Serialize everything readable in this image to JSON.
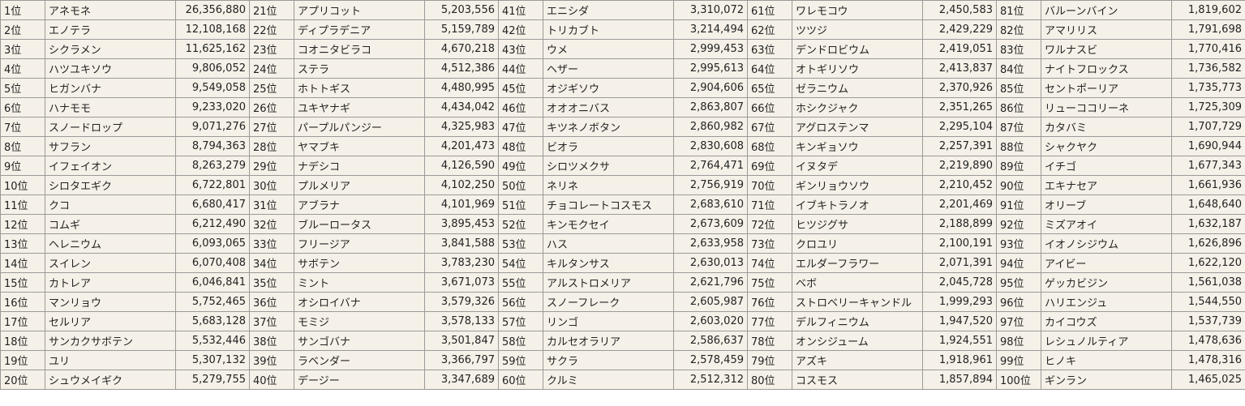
{
  "rankings": [
    {
      "rank": "1位",
      "name": "アネモネ",
      "value": "26,356,880"
    },
    {
      "rank": "2位",
      "name": "エノテラ",
      "value": "12,108,168"
    },
    {
      "rank": "3位",
      "name": "シクラメン",
      "value": "11,625,162"
    },
    {
      "rank": "4位",
      "name": "ハツユキソウ",
      "value": "9,806,052"
    },
    {
      "rank": "5位",
      "name": "ヒガンバナ",
      "value": "9,549,058"
    },
    {
      "rank": "6位",
      "name": "ハナモモ",
      "value": "9,233,020"
    },
    {
      "rank": "7位",
      "name": "スノードロップ",
      "value": "9,071,276"
    },
    {
      "rank": "8位",
      "name": "サフラン",
      "value": "8,794,363"
    },
    {
      "rank": "9位",
      "name": "イフェイオン",
      "value": "8,263,279"
    },
    {
      "rank": "10位",
      "name": "シロタエギク",
      "value": "6,722,801"
    },
    {
      "rank": "11位",
      "name": "クコ",
      "value": "6,680,417"
    },
    {
      "rank": "12位",
      "name": "コムギ",
      "value": "6,212,490"
    },
    {
      "rank": "13位",
      "name": "ヘレニウム",
      "value": "6,093,065"
    },
    {
      "rank": "14位",
      "name": "スイレン",
      "value": "6,070,408"
    },
    {
      "rank": "15位",
      "name": "カトレア",
      "value": "6,046,841"
    },
    {
      "rank": "16位",
      "name": "マンリョウ",
      "value": "5,752,465"
    },
    {
      "rank": "17位",
      "name": "セルリア",
      "value": "5,683,128"
    },
    {
      "rank": "18位",
      "name": "サンカクサボテン",
      "value": "5,532,446"
    },
    {
      "rank": "19位",
      "name": "ユリ",
      "value": "5,307,132"
    },
    {
      "rank": "20位",
      "name": "シュウメイギク",
      "value": "5,279,755"
    },
    {
      "rank": "21位",
      "name": "アプリコット",
      "value": "5,203,556"
    },
    {
      "rank": "22位",
      "name": "ディプラデニア",
      "value": "5,159,789"
    },
    {
      "rank": "23位",
      "name": "コオニタビラコ",
      "value": "4,670,218"
    },
    {
      "rank": "24位",
      "name": "ステラ",
      "value": "4,512,386"
    },
    {
      "rank": "25位",
      "name": "ホトトギス",
      "value": "4,480,995"
    },
    {
      "rank": "26位",
      "name": "ユキヤナギ",
      "value": "4,434,042"
    },
    {
      "rank": "27位",
      "name": "パープルパンジー",
      "value": "4,325,983"
    },
    {
      "rank": "28位",
      "name": "ヤマブキ",
      "value": "4,201,473"
    },
    {
      "rank": "29位",
      "name": "ナデシコ",
      "value": "4,126,590"
    },
    {
      "rank": "30位",
      "name": "プルメリア",
      "value": "4,102,250"
    },
    {
      "rank": "31位",
      "name": "アブラナ",
      "value": "4,101,969"
    },
    {
      "rank": "32位",
      "name": "ブルーロータス",
      "value": "3,895,453"
    },
    {
      "rank": "33位",
      "name": "フリージア",
      "value": "3,841,588"
    },
    {
      "rank": "34位",
      "name": "サボテン",
      "value": "3,783,230"
    },
    {
      "rank": "35位",
      "name": "ミント",
      "value": "3,671,073"
    },
    {
      "rank": "36位",
      "name": "オシロイバナ",
      "value": "3,579,326"
    },
    {
      "rank": "37位",
      "name": "モミジ",
      "value": "3,578,133"
    },
    {
      "rank": "38位",
      "name": "サンゴバナ",
      "value": "3,501,847"
    },
    {
      "rank": "39位",
      "name": "ラベンダー",
      "value": "3,366,797"
    },
    {
      "rank": "40位",
      "name": "デージー",
      "value": "3,347,689"
    },
    {
      "rank": "41位",
      "name": "エニシダ",
      "value": "3,310,072"
    },
    {
      "rank": "42位",
      "name": "トリカブト",
      "value": "3,214,494"
    },
    {
      "rank": "43位",
      "name": "ウメ",
      "value": "2,999,453"
    },
    {
      "rank": "44位",
      "name": "ヘザー",
      "value": "2,995,613"
    },
    {
      "rank": "45位",
      "name": "オジギソウ",
      "value": "2,904,606"
    },
    {
      "rank": "46位",
      "name": "オオオニバス",
      "value": "2,863,807"
    },
    {
      "rank": "47位",
      "name": "キツネノボタン",
      "value": "2,860,982"
    },
    {
      "rank": "48位",
      "name": "ビオラ",
      "value": "2,830,608"
    },
    {
      "rank": "49位",
      "name": "シロツメクサ",
      "value": "2,764,471"
    },
    {
      "rank": "50位",
      "name": "ネリネ",
      "value": "2,756,919"
    },
    {
      "rank": "51位",
      "name": "チョコレートコスモス",
      "value": "2,683,610"
    },
    {
      "rank": "52位",
      "name": "キンモクセイ",
      "value": "2,673,609"
    },
    {
      "rank": "53位",
      "name": "ハス",
      "value": "2,633,958"
    },
    {
      "rank": "54位",
      "name": "キルタンサス",
      "value": "2,630,013"
    },
    {
      "rank": "55位",
      "name": "アルストロメリア",
      "value": "2,621,796"
    },
    {
      "rank": "56位",
      "name": "スノーフレーク",
      "value": "2,605,987"
    },
    {
      "rank": "57位",
      "name": "リンゴ",
      "value": "2,603,020"
    },
    {
      "rank": "58位",
      "name": "カルセオラリア",
      "value": "2,586,637"
    },
    {
      "rank": "59位",
      "name": "サクラ",
      "value": "2,578,459"
    },
    {
      "rank": "60位",
      "name": "クルミ",
      "value": "2,512,312"
    },
    {
      "rank": "61位",
      "name": "ワレモコウ",
      "value": "2,450,583"
    },
    {
      "rank": "62位",
      "name": "ツツジ",
      "value": "2,429,229"
    },
    {
      "rank": "63位",
      "name": "デンドロビウム",
      "value": "2,419,051"
    },
    {
      "rank": "64位",
      "name": "オトギリソウ",
      "value": "2,413,837"
    },
    {
      "rank": "65位",
      "name": "ゼラニウム",
      "value": "2,370,926"
    },
    {
      "rank": "66位",
      "name": "ホシクジャク",
      "value": "2,351,265"
    },
    {
      "rank": "67位",
      "name": "アグロステンマ",
      "value": "2,295,104"
    },
    {
      "rank": "68位",
      "name": "キンギョソウ",
      "value": "2,257,391"
    },
    {
      "rank": "69位",
      "name": "イヌタデ",
      "value": "2,219,890"
    },
    {
      "rank": "70位",
      "name": "ギンリョウソウ",
      "value": "2,210,452"
    },
    {
      "rank": "71位",
      "name": "イブキトラノオ",
      "value": "2,201,469"
    },
    {
      "rank": "72位",
      "name": "ヒツジグサ",
      "value": "2,188,899"
    },
    {
      "rank": "73位",
      "name": "クロユリ",
      "value": "2,100,191"
    },
    {
      "rank": "74位",
      "name": "エルダーフラワー",
      "value": "2,071,391"
    },
    {
      "rank": "75位",
      "name": "ベボ",
      "value": "2,045,728"
    },
    {
      "rank": "76位",
      "name": "ストロベリーキャンドル",
      "value": "1,999,293"
    },
    {
      "rank": "77位",
      "name": "デルフィニウム",
      "value": "1,947,520"
    },
    {
      "rank": "78位",
      "name": "オンシジューム",
      "value": "1,924,551"
    },
    {
      "rank": "79位",
      "name": "アズキ",
      "value": "1,918,961"
    },
    {
      "rank": "80位",
      "name": "コスモス",
      "value": "1,857,894"
    },
    {
      "rank": "81位",
      "name": "バルーンバイン",
      "value": "1,819,602"
    },
    {
      "rank": "82位",
      "name": "アマリリス",
      "value": "1,791,698"
    },
    {
      "rank": "83位",
      "name": "ワルナスビ",
      "value": "1,770,416"
    },
    {
      "rank": "84位",
      "name": "ナイトフロックス",
      "value": "1,736,582"
    },
    {
      "rank": "85位",
      "name": "セントポーリア",
      "value": "1,735,773"
    },
    {
      "rank": "86位",
      "name": "リューココリーネ",
      "value": "1,725,309"
    },
    {
      "rank": "87位",
      "name": "カタバミ",
      "value": "1,707,729"
    },
    {
      "rank": "88位",
      "name": "シャクヤク",
      "value": "1,690,944"
    },
    {
      "rank": "89位",
      "name": "イチゴ",
      "value": "1,677,343"
    },
    {
      "rank": "90位",
      "name": "エキナセア",
      "value": "1,661,936"
    },
    {
      "rank": "91位",
      "name": "オリーブ",
      "value": "1,648,640"
    },
    {
      "rank": "92位",
      "name": "ミズアオイ",
      "value": "1,632,187"
    },
    {
      "rank": "93位",
      "name": "イオノシジウム",
      "value": "1,626,896"
    },
    {
      "rank": "94位",
      "name": "アイビー",
      "value": "1,622,120"
    },
    {
      "rank": "95位",
      "name": "ゲッカビジン",
      "value": "1,561,038"
    },
    {
      "rank": "96位",
      "name": "ハリエンジュ",
      "value": "1,544,550"
    },
    {
      "rank": "97位",
      "name": "カイコウズ",
      "value": "1,537,739"
    },
    {
      "rank": "98位",
      "name": "レシュノルティア",
      "value": "1,478,636"
    },
    {
      "rank": "99位",
      "name": "ヒノキ",
      "value": "1,478,316"
    },
    {
      "rank": "100位",
      "name": "ギンラン",
      "value": "1,465,025"
    }
  ]
}
